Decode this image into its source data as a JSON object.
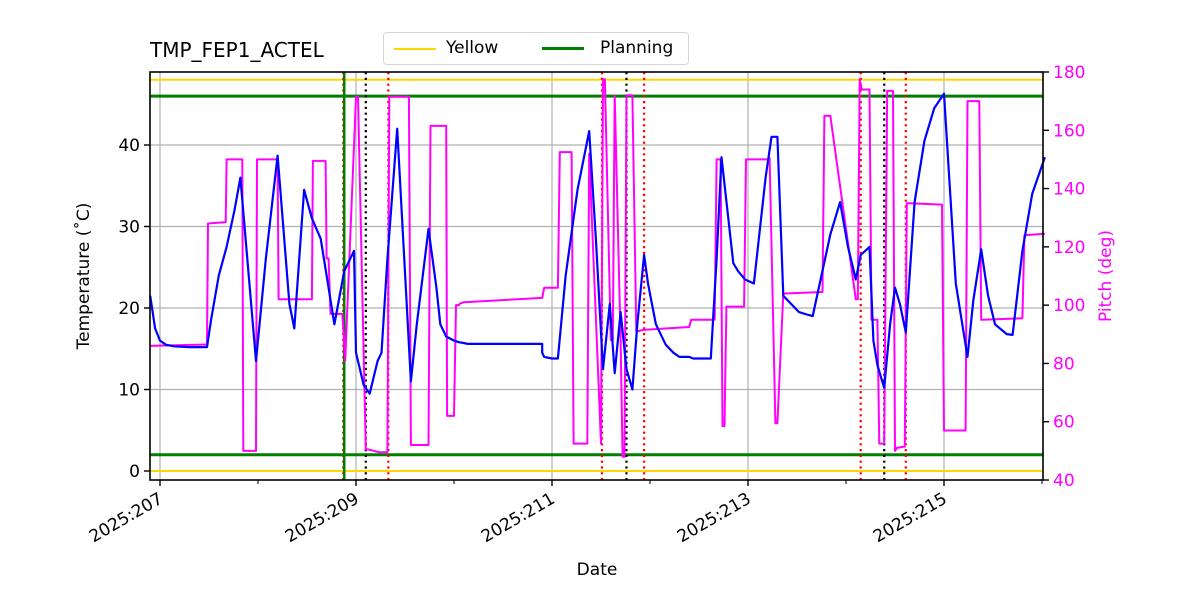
{
  "chart_data": {
    "type": "line",
    "title": "TMP_FEP1_ACTEL",
    "xlabel": "Date",
    "ylabel": "Temperature ($^\\circ$C)",
    "ylabel_display": "Temperature (˚C)",
    "y2label": "Pitch (deg)",
    "xlim": [
      206.9,
      216.03
    ],
    "ylim": [
      -1.0,
      49.0
    ],
    "y2lim": [
      40,
      180
    ],
    "grid": true,
    "x_ticks": [
      {
        "value": 207,
        "label": "2025:207"
      },
      {
        "value": 209,
        "label": "2025:209"
      },
      {
        "value": 211,
        "label": "2025:211"
      },
      {
        "value": 213,
        "label": "2025:213"
      },
      {
        "value": 215,
        "label": "2025:215"
      }
    ],
    "x_minor_ticks": [
      208,
      210,
      212,
      214,
      216
    ],
    "y_ticks": [
      0,
      10,
      20,
      30,
      40
    ],
    "y2_ticks": [
      40,
      60,
      80,
      100,
      120,
      140,
      160,
      180
    ],
    "legend": {
      "position": "upper center (outside axes)",
      "entries": [
        {
          "label": "Yellow",
          "color": "#ffd700"
        },
        {
          "label": "Planning",
          "color": "#008000"
        }
      ]
    },
    "limits": [
      {
        "name": "Yellow",
        "values": [
          0.0,
          48.0
        ],
        "color": "#ffd700"
      },
      {
        "name": "Planning",
        "values": [
          2.0,
          46.0
        ],
        "color": "#008000"
      }
    ],
    "vertical_markers": [
      {
        "x": 208.87,
        "color": "#ff0000",
        "style": "dotted"
      },
      {
        "x": 208.88,
        "color": "#008000",
        "style": "solid"
      },
      {
        "x": 209.1,
        "color": "#000000",
        "style": "dotted"
      },
      {
        "x": 209.33,
        "color": "#ff0000",
        "style": "dotted"
      },
      {
        "x": 211.51,
        "color": "#ff0000",
        "style": "dotted"
      },
      {
        "x": 211.76,
        "color": "#000000",
        "style": "dotted"
      },
      {
        "x": 211.94,
        "color": "#ff0000",
        "style": "dotted"
      },
      {
        "x": 214.15,
        "color": "#ff0000",
        "style": "dotted"
      },
      {
        "x": 214.39,
        "color": "#000000",
        "style": "dotted"
      },
      {
        "x": 214.61,
        "color": "#ff0000",
        "style": "dotted"
      }
    ],
    "series": [
      {
        "name": "TMP_FEP1_ACTEL",
        "axis": "left",
        "color": "#0000ff",
        "x": [
          206.9,
          206.95,
          207.0,
          207.06,
          207.14,
          207.3,
          207.48,
          207.52,
          207.6,
          207.68,
          207.76,
          207.82,
          207.98,
          208.08,
          208.2,
          208.32,
          208.37,
          208.47,
          208.55,
          208.64,
          208.7,
          208.78,
          208.88,
          208.98,
          209.0,
          209.08,
          209.14,
          209.22,
          209.26,
          209.32,
          209.42,
          209.56,
          209.62,
          209.74,
          209.82,
          209.86,
          209.92,
          210.0,
          210.05,
          210.1,
          210.14,
          210.2,
          210.35,
          210.6,
          210.9,
          210.9,
          210.92,
          211.0,
          211.06,
          211.14,
          211.26,
          211.38,
          211.45,
          211.52,
          211.59,
          211.64,
          211.7,
          211.76,
          211.82,
          211.87,
          211.94,
          211.98,
          212.06,
          212.16,
          212.24,
          212.3,
          212.4,
          212.44,
          212.62,
          212.68,
          212.73,
          212.85,
          212.9,
          212.97,
          213.06,
          213.18,
          213.24,
          213.3,
          213.36,
          213.44,
          213.52,
          213.6,
          213.66,
          213.84,
          213.94,
          214.02,
          214.1,
          214.15,
          214.24,
          214.28,
          214.32,
          214.39,
          214.45,
          214.5,
          214.55,
          214.61,
          214.7,
          214.8,
          214.9,
          215.0,
          215.12,
          215.24,
          215.3,
          215.38,
          215.45,
          215.52,
          215.64,
          215.7,
          215.8,
          215.9,
          216.03
        ],
        "y": [
          21.5,
          17.5,
          16.0,
          15.5,
          15.3,
          15.2,
          15.2,
          18.5,
          24.0,
          27.5,
          32.0,
          36.0,
          13.5,
          26.0,
          38.7,
          20.5,
          17.5,
          34.5,
          31.0,
          28.5,
          24.0,
          18.0,
          24.5,
          27.0,
          14.5,
          10.5,
          9.5,
          13.5,
          14.5,
          26.0,
          42.0,
          11.0,
          18.0,
          29.7,
          22.5,
          18.0,
          16.5,
          16.0,
          15.8,
          15.7,
          15.6,
          15.6,
          15.6,
          15.6,
          15.6,
          14.5,
          14.0,
          13.8,
          13.8,
          24.0,
          34.5,
          41.7,
          28.0,
          12.5,
          20.5,
          12.0,
          19.5,
          12.5,
          10.0,
          18.0,
          26.5,
          23.0,
          18.0,
          15.5,
          14.5,
          14.0,
          14.0,
          13.8,
          13.8,
          26.0,
          38.5,
          25.5,
          24.5,
          23.5,
          23.0,
          36.0,
          41.0,
          41.0,
          21.5,
          20.5,
          19.5,
          19.2,
          19.0,
          29.0,
          33.0,
          27.5,
          23.5,
          26.5,
          27.5,
          16.0,
          13.0,
          10.2,
          18.0,
          22.5,
          20.5,
          17.0,
          33.0,
          40.5,
          44.5,
          46.3,
          23.0,
          14.0,
          21.0,
          27.2,
          21.5,
          18.0,
          16.8,
          16.7,
          27.0,
          34.0,
          38.5
        ]
      },
      {
        "name": "Pitch",
        "axis": "right",
        "color": "#ff00ff",
        "x": [
          206.9,
          207.48,
          207.49,
          207.67,
          207.68,
          207.7,
          207.84,
          207.85,
          207.98,
          207.99,
          208.2,
          208.21,
          208.55,
          208.56,
          208.69,
          208.7,
          208.72,
          208.74,
          208.86,
          208.87,
          208.89,
          209.0,
          209.02,
          209.1,
          209.12,
          209.24,
          209.32,
          209.34,
          209.54,
          209.56,
          209.74,
          209.76,
          209.92,
          209.93,
          210.0,
          210.02,
          210.05,
          210.06,
          210.1,
          210.9,
          210.92,
          211.06,
          211.08,
          211.2,
          211.22,
          211.36,
          211.38,
          211.5,
          211.52,
          211.54,
          211.6,
          211.62,
          211.64,
          211.7,
          211.72,
          211.74,
          211.76,
          211.8,
          211.82,
          211.86,
          211.87,
          211.93,
          212.4,
          212.42,
          212.66,
          212.68,
          212.72,
          212.74,
          212.76,
          212.78,
          212.96,
          212.98,
          213.2,
          213.22,
          213.28,
          213.3,
          213.36,
          213.38,
          213.76,
          213.78,
          213.84,
          214.1,
          214.12,
          214.14,
          214.16,
          214.24,
          214.26,
          214.32,
          214.34,
          214.39,
          214.42,
          214.48,
          214.5,
          214.52,
          214.6,
          214.62,
          214.98,
          215.0,
          215.22,
          215.24,
          215.36,
          215.38,
          215.8,
          215.82,
          216.03
        ],
        "y": [
          86.0,
          86.5,
          128.0,
          128.5,
          150.0,
          150.0,
          150.0,
          50.0,
          50.0,
          150.0,
          150.0,
          102.0,
          102.0,
          149.5,
          149.5,
          116.0,
          116.0,
          97.0,
          97.0,
          92.0,
          81.0,
          171.5,
          171.5,
          50.5,
          50.5,
          49.5,
          49.5,
          171.5,
          171.5,
          52.0,
          52.0,
          161.5,
          161.5,
          62.0,
          62.0,
          100.0,
          100.0,
          100.5,
          101.0,
          102.5,
          106.0,
          106.0,
          152.5,
          152.5,
          52.5,
          52.5,
          152.0,
          52.5,
          177.5,
          177.5,
          88.0,
          88.0,
          172.0,
          88.0,
          48.0,
          48.0,
          172.0,
          172.0,
          172.0,
          91.0,
          91.0,
          91.5,
          92.5,
          95.0,
          95.0,
          150.0,
          150.0,
          58.5,
          58.5,
          99.5,
          99.5,
          150.0,
          150.0,
          150.5,
          59.5,
          59.5,
          104.0,
          104.0,
          104.5,
          165.0,
          165.0,
          102.0,
          102.0,
          177.5,
          174.0,
          174.0,
          95.0,
          95.0,
          52.5,
          52.5,
          173.5,
          173.5,
          50.0,
          51.0,
          51.5,
          135.0,
          134.5,
          57.0,
          57.0,
          170.0,
          170.0,
          95.0,
          95.5,
          124.0,
          124.5
        ]
      }
    ]
  },
  "labels": {
    "title": "TMP_FEP1_ACTEL",
    "xlabel": "Date",
    "ylabel": "Temperature (˚C)",
    "y2label": "Pitch (deg)",
    "legend_yellow": "Yellow",
    "legend_planning": "Planning"
  },
  "colors": {
    "temperature": "#0000ff",
    "pitch": "#ff00ff",
    "yellow_limit": "#ffd700",
    "planning_limit": "#008000",
    "grid": "#b0b0b0",
    "marker_red": "#ff0000",
    "marker_black": "#000000"
  }
}
